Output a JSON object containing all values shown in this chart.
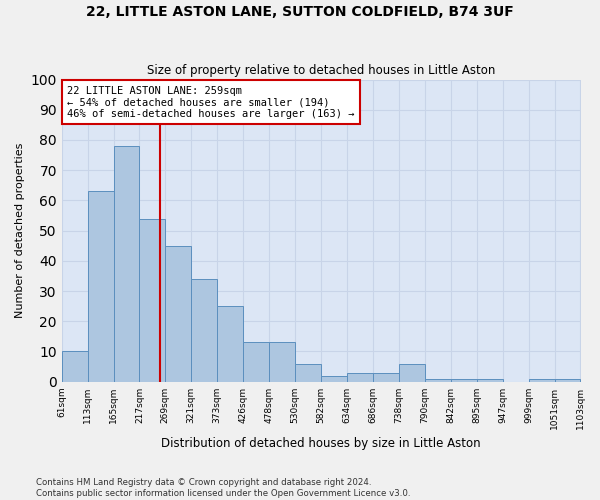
{
  "title": "22, LITTLE ASTON LANE, SUTTON COLDFIELD, B74 3UF",
  "subtitle": "Size of property relative to detached houses in Little Aston",
  "xlabel": "Distribution of detached houses by size in Little Aston",
  "ylabel": "Number of detached properties",
  "bar_edges": [
    61,
    113,
    165,
    217,
    269,
    321,
    373,
    426,
    478,
    530,
    582,
    634,
    686,
    738,
    790,
    842,
    895,
    947,
    999,
    1051,
    1103
  ],
  "bar_heights": [
    10,
    63,
    78,
    54,
    45,
    34,
    25,
    13,
    13,
    6,
    2,
    3,
    3,
    6,
    1,
    1,
    1,
    0,
    1,
    1
  ],
  "bar_color": "#adc6e0",
  "bar_edge_color": "#5b8fbe",
  "grid_color": "#c8d4e8",
  "bg_color": "#dce6f5",
  "fig_color": "#f0f0f0",
  "vline_x": 259,
  "vline_color": "#cc0000",
  "annotation_text": "22 LITTLE ASTON LANE: 259sqm\n← 54% of detached houses are smaller (194)\n46% of semi-detached houses are larger (163) →",
  "annotation_box_color": "#ffffff",
  "annotation_box_edge": "#cc0000",
  "footer_text": "Contains HM Land Registry data © Crown copyright and database right 2024.\nContains public sector information licensed under the Open Government Licence v3.0.",
  "ylim": [
    0,
    100
  ],
  "tick_labels": [
    "61sqm",
    "113sqm",
    "165sqm",
    "217sqm",
    "269sqm",
    "321sqm",
    "373sqm",
    "426sqm",
    "478sqm",
    "530sqm",
    "582sqm",
    "634sqm",
    "686sqm",
    "738sqm",
    "790sqm",
    "842sqm",
    "895sqm",
    "947sqm",
    "999sqm",
    "1051sqm",
    "1103sqm"
  ]
}
